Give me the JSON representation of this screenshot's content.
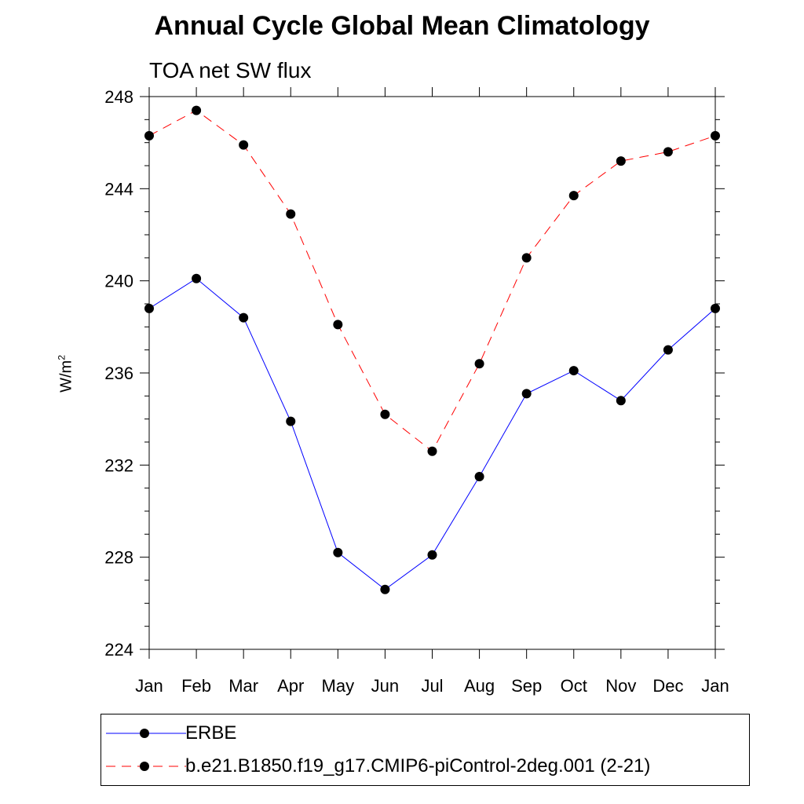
{
  "chart_data": {
    "type": "line",
    "title": "Annual Cycle Global Mean Climatology",
    "subtitle": "TOA net SW flux",
    "ylabel_base": "W/m",
    "ylabel_sup": "2",
    "xlabel": "",
    "ylim": [
      224,
      248
    ],
    "yticks": [
      "224",
      "228",
      "232",
      "236",
      "240",
      "244",
      "248"
    ],
    "categories": [
      "Jan",
      "Feb",
      "Mar",
      "Apr",
      "May",
      "Jun",
      "Jul",
      "Aug",
      "Sep",
      "Oct",
      "Nov",
      "Dec",
      "Jan"
    ],
    "series": [
      {
        "name": "ERBE",
        "color": "#0000ff",
        "dash": "solid",
        "values": [
          238.8,
          240.1,
          238.4,
          233.9,
          228.2,
          226.6,
          228.1,
          231.5,
          235.1,
          236.1,
          234.8,
          237.0,
          238.8
        ]
      },
      {
        "name": "b.e21.B1850.f19_g17.CMIP6-piControl-2deg.001 (2-21)",
        "color": "#ff0000",
        "dash": "dashed",
        "values": [
          246.3,
          247.4,
          245.9,
          242.9,
          238.1,
          234.2,
          232.6,
          236.4,
          241.0,
          243.7,
          245.2,
          245.6,
          246.3
        ]
      }
    ],
    "legend_position": "bottom"
  }
}
